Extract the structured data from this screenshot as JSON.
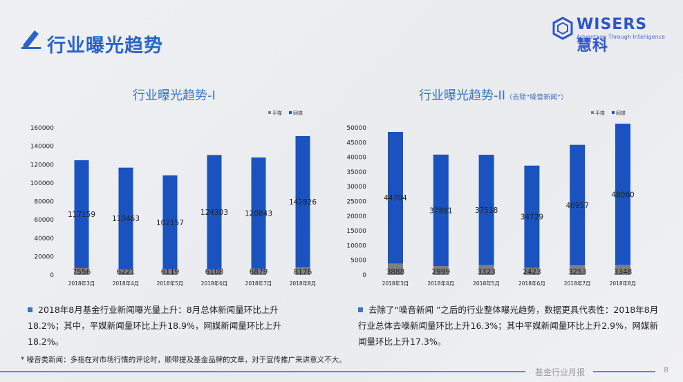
{
  "header": {
    "title": "行业曝光趋势",
    "icon": "pencil-icon"
  },
  "logo": {
    "name": "WISERS慧科",
    "tagline": "Advantage Through Intelligence"
  },
  "colors": {
    "accent": "#2a63c8",
    "online": "#1a53bf",
    "print": "#7f7f7f"
  },
  "chart_data": [
    {
      "type": "bar",
      "stacked": true,
      "title": "行业曝光趋势-I",
      "title_note": "",
      "categories": [
        "2018年3月",
        "2018年4月",
        "2018年5月",
        "2018年6月",
        "2018年7月",
        "2018年8月"
      ],
      "series": [
        {
          "name": "平媒",
          "values": [
            7556,
            6221,
            6119,
            6108,
            6879,
            8176
          ]
        },
        {
          "name": "网媒",
          "values": [
            117159,
            110463,
            102157,
            124303,
            120843,
            142826
          ]
        }
      ],
      "ylim": [
        0,
        160000
      ],
      "yticks": [
        0,
        20000,
        40000,
        60000,
        80000,
        100000,
        120000,
        140000,
        160000
      ],
      "legend": "top-right",
      "grid": false
    },
    {
      "type": "bar",
      "stacked": true,
      "title": "行业曝光趋势-II",
      "title_note": "（去除“噪音新闻”）",
      "categories": [
        "2018年3月",
        "2018年4月",
        "2018年5月",
        "2018年6月",
        "2018年7月",
        "2018年8月"
      ],
      "series": [
        {
          "name": "平媒",
          "values": [
            3888,
            2999,
            3323,
            2423,
            3253,
            3348
          ]
        },
        {
          "name": "网媒",
          "values": [
            44704,
            37891,
            37518,
            34729,
            40957,
            48060
          ]
        }
      ],
      "ylim": [
        0,
        50000
      ],
      "yticks": [
        0,
        5000,
        10000,
        15000,
        20000,
        25000,
        30000,
        35000,
        40000,
        45000,
        50000
      ],
      "legend": "top-right",
      "grid": false
    }
  ],
  "notes": {
    "left": "2018年8月基金行业新闻曝光量上升：8月总体新闻量环比上升18.2%；其中，平媒新闻量环比上升18.9%，网媒新闻量环比上升18.2%。",
    "right": "去除了“噪音新闻 ”之后的行业整体曝光趋势，数据更具代表性：2018年8月行业总体去噪新闻量环比上升16.3%；其中平媒新闻量环比上升2.9%，网媒新闻量环比上升17.3%。"
  },
  "footnote": "* 噪音类新闻：多指在对市场行情的评论时，顺带提及基金品牌的文章，对于宣传推广来讲意义不大。",
  "footer": {
    "report": "基金行业月报",
    "page": "8"
  }
}
